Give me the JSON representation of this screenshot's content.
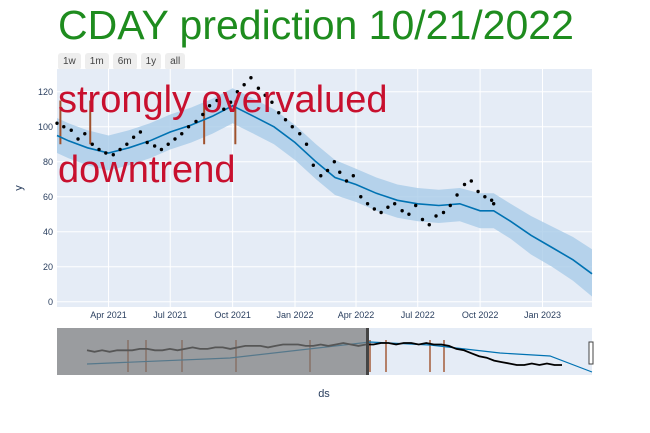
{
  "title": "CDAY prediction 10/21/2022",
  "range_buttons": [
    "1w",
    "1m",
    "6m",
    "1y",
    "all"
  ],
  "annotations": [
    "strongly overvalued",
    "downtrend"
  ],
  "colors": {
    "title": "#1e8c1e",
    "annotation": "#c8102e",
    "plot_bg": "#e5ecf6",
    "forecast_line": "#0072b2",
    "band": "#a9cce8",
    "actual": "#000000",
    "changepoints": "#a0522d"
  },
  "chart_data": {
    "type": "line",
    "xlabel": "ds",
    "ylabel": "y",
    "xlim": [
      "2021-01-15",
      "2023-03-15"
    ],
    "ylim": [
      -3,
      133
    ],
    "x_ticks": [
      "2021-04-01",
      "2021-07-01",
      "2021-10-01",
      "2022-01-01",
      "2022-04-01",
      "2022-07-01",
      "2022-10-01",
      "2023-01-01"
    ],
    "x_tick_labels": [
      "Apr 2021",
      "Jul 2021",
      "Oct 2021",
      "Jan 2022",
      "Apr 2022",
      "Jul 2022",
      "Oct 2022",
      "Jan 2023"
    ],
    "y_ticks": [
      0,
      20,
      40,
      60,
      80,
      100,
      120
    ],
    "grid": true,
    "series": [
      {
        "role": "forecast",
        "x": [
          "2021-01-15",
          "2021-02-01",
          "2021-03-01",
          "2021-04-01",
          "2021-05-01",
          "2021-06-01",
          "2021-07-01",
          "2021-08-01",
          "2021-09-01",
          "2021-10-01",
          "2021-11-01",
          "2021-12-01",
          "2022-01-01",
          "2022-02-01",
          "2022-03-01",
          "2022-04-01",
          "2022-05-01",
          "2022-06-01",
          "2022-07-01",
          "2022-08-01",
          "2022-09-01",
          "2022-10-01",
          "2022-10-21",
          "2022-11-15",
          "2022-12-15",
          "2023-01-15",
          "2023-02-15",
          "2023-03-15"
        ],
        "y": [
          95,
          92,
          88,
          85,
          88,
          92,
          97,
          101,
          106,
          112,
          106,
          100,
          91,
          80,
          71,
          67,
          62,
          58,
          56,
          55,
          56,
          52,
          52,
          46,
          38,
          31,
          24,
          16
        ]
      },
      {
        "role": "upper",
        "x": [
          "2021-01-15",
          "2021-02-01",
          "2021-03-01",
          "2021-04-01",
          "2021-05-01",
          "2021-06-01",
          "2021-07-01",
          "2021-08-01",
          "2021-09-01",
          "2021-10-01",
          "2021-11-01",
          "2021-12-01",
          "2022-01-01",
          "2022-02-01",
          "2022-03-01",
          "2022-04-01",
          "2022-05-01",
          "2022-06-01",
          "2022-07-01",
          "2022-08-01",
          "2022-09-01",
          "2022-10-01",
          "2022-10-21",
          "2022-11-15",
          "2022-12-15",
          "2023-01-15",
          "2023-02-15",
          "2023-03-15"
        ],
        "y": [
          105,
          102,
          98,
          95,
          98,
          102,
          107,
          111,
          116,
          122,
          116,
          110,
          101,
          90,
          81,
          76,
          71,
          67,
          65,
          64,
          65,
          62,
          62,
          56,
          49,
          43,
          37,
          30
        ]
      },
      {
        "role": "lower",
        "x": [
          "2021-01-15",
          "2021-02-01",
          "2021-03-01",
          "2021-04-01",
          "2021-05-01",
          "2021-06-01",
          "2021-07-01",
          "2021-08-01",
          "2021-09-01",
          "2021-10-01",
          "2021-11-01",
          "2021-12-01",
          "2022-01-01",
          "2022-02-01",
          "2022-03-01",
          "2022-04-01",
          "2022-05-01",
          "2022-06-01",
          "2022-07-01",
          "2022-08-01",
          "2022-09-01",
          "2022-10-01",
          "2022-10-21",
          "2022-11-15",
          "2022-12-15",
          "2023-01-15",
          "2023-02-15",
          "2023-03-15"
        ],
        "y": [
          85,
          82,
          78,
          75,
          78,
          82,
          87,
          91,
          96,
          102,
          96,
          90,
          81,
          70,
          61,
          57,
          52,
          48,
          46,
          45,
          46,
          42,
          42,
          36,
          27,
          20,
          12,
          3
        ]
      },
      {
        "role": "actual",
        "x": [
          "2021-01-15",
          "2021-01-25",
          "2021-02-05",
          "2021-02-15",
          "2021-02-25",
          "2021-03-08",
          "2021-03-18",
          "2021-03-28",
          "2021-04-08",
          "2021-04-18",
          "2021-04-28",
          "2021-05-08",
          "2021-05-18",
          "2021-05-28",
          "2021-06-08",
          "2021-06-18",
          "2021-06-28",
          "2021-07-08",
          "2021-07-18",
          "2021-07-28",
          "2021-08-08",
          "2021-08-18",
          "2021-08-28",
          "2021-09-08",
          "2021-09-18",
          "2021-09-28",
          "2021-10-08",
          "2021-10-18",
          "2021-10-28",
          "2021-11-08",
          "2021-11-18",
          "2021-11-28",
          "2021-12-08",
          "2021-12-18",
          "2021-12-28",
          "2022-01-08",
          "2022-01-18",
          "2022-01-28",
          "2022-02-08",
          "2022-02-18",
          "2022-02-28",
          "2022-03-08",
          "2022-03-18",
          "2022-03-28",
          "2022-04-08",
          "2022-04-18",
          "2022-04-28",
          "2022-05-08",
          "2022-05-18",
          "2022-05-28",
          "2022-06-08",
          "2022-06-18",
          "2022-06-28",
          "2022-07-08",
          "2022-07-18",
          "2022-07-28",
          "2022-08-08",
          "2022-08-18",
          "2022-08-28",
          "2022-09-08",
          "2022-09-18",
          "2022-09-28",
          "2022-10-08",
          "2022-10-18",
          "2022-10-21"
        ],
        "y": [
          102,
          100,
          98,
          93,
          96,
          90,
          87,
          85,
          84,
          87,
          90,
          94,
          97,
          91,
          89,
          87,
          90,
          93,
          96,
          100,
          103,
          107,
          112,
          115,
          110,
          114,
          120,
          124,
          128,
          122,
          118,
          114,
          108,
          104,
          100,
          96,
          90,
          78,
          72,
          75,
          80,
          74,
          69,
          72,
          60,
          56,
          53,
          51,
          54,
          56,
          52,
          50,
          55,
          47,
          44,
          49,
          51,
          55,
          61,
          67,
          69,
          63,
          60,
          58,
          56
        ]
      }
    ],
    "changepoints": [
      "2021-01-20",
      "2021-03-05",
      "2021-08-20",
      "2021-10-05"
    ]
  },
  "navigator": {
    "actual": [
      30,
      29,
      30,
      29,
      30,
      30,
      30,
      31,
      31,
      30,
      30,
      31,
      30,
      31,
      32,
      31,
      31,
      32,
      32,
      31,
      32,
      33,
      33,
      33,
      32,
      33,
      34,
      34,
      34,
      33,
      33,
      34,
      33,
      34,
      35,
      34,
      33,
      34,
      34,
      35,
      35,
      34,
      35,
      35,
      34,
      35,
      34,
      34,
      33,
      31,
      30,
      28,
      26,
      25,
      23,
      22,
      21,
      20,
      20,
      21,
      20,
      21,
      20,
      20
    ]
  }
}
